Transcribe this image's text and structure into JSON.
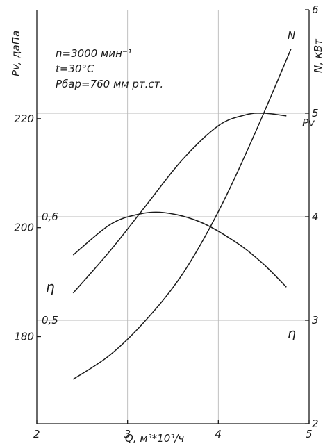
{
  "chart_data": {
    "type": "line",
    "x_axis": {
      "label": "Q, м³*10³/ч",
      "range": [
        2,
        5
      ],
      "ticks": [
        "2",
        "3",
        "4",
        "5"
      ]
    },
    "y_left": {
      "label": "Pv, даПа",
      "range": [
        164,
        240
      ],
      "ticks": [
        {
          "v": 180,
          "t": "180"
        },
        {
          "v": 200,
          "t": "200"
        },
        {
          "v": 220,
          "t": "220"
        }
      ]
    },
    "y_right": {
      "label": "N, кВт",
      "range": [
        2,
        6
      ],
      "ticks": [
        {
          "v": 2,
          "t": "2"
        },
        {
          "v": 3,
          "t": "3"
        },
        {
          "v": 4,
          "t": "4"
        },
        {
          "v": 5,
          "t": "5"
        },
        {
          "v": 6,
          "t": "6"
        }
      ]
    },
    "y_eta": {
      "label": "η",
      "range": [
        0.4,
        0.8
      ],
      "ticks": [
        {
          "v": 0.5,
          "t": "0,5"
        },
        {
          "v": 0.6,
          "t": "0,6"
        }
      ]
    },
    "conditions": [
      "n=3000 мин⁻¹",
      "t=30°C",
      "Pбар=760 мм рт.ст."
    ],
    "grid": true,
    "series": [
      {
        "name": "Pv",
        "axis": "left",
        "x": [
          2.4,
          2.8,
          3.2,
          3.6,
          4.0,
          4.3,
          4.5,
          4.75
        ],
        "y": [
          188,
          195.6,
          204,
          212.4,
          218.7,
          220.7,
          221.0,
          220.5
        ]
      },
      {
        "name": "N",
        "axis": "right",
        "x": [
          2.4,
          2.8,
          3.2,
          3.6,
          4.0,
          4.4,
          4.8
        ],
        "y": [
          2.43,
          2.66,
          3.0,
          3.44,
          4.05,
          4.8,
          5.62
        ]
      },
      {
        "name": "η",
        "axis": "eta",
        "x": [
          2.4,
          2.8,
          3.1,
          3.4,
          3.8,
          4.2,
          4.5,
          4.75
        ],
        "y": [
          0.563,
          0.592,
          0.602,
          0.604,
          0.595,
          0.575,
          0.554,
          0.532
        ]
      }
    ]
  }
}
